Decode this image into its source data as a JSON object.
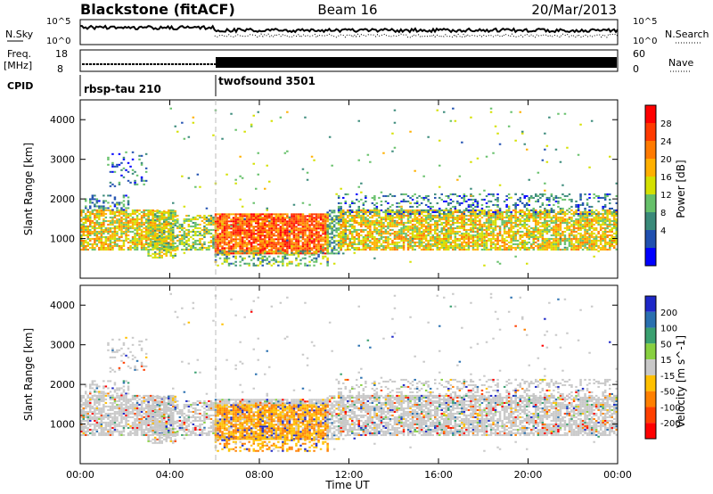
{
  "header": {
    "station": "Blackstone (fitACF)",
    "beam": "Beam 16",
    "date": "20/Mar/2013"
  },
  "top_panels": {
    "nsky_label": "N.Sky",
    "nsky_ticks": [
      "10^5",
      "10^0"
    ],
    "nsearch_label": "N.Search",
    "nsearch_ticks": [
      "10^5",
      "10^0"
    ],
    "freq_label": "Freq.",
    "freq_unit": "[MHz]",
    "freq_ticks": [
      "18",
      "8"
    ],
    "nave_label": "Nave",
    "nave_ticks": [
      "60",
      "0"
    ],
    "cpid_label": "CPID",
    "cpid_programs": [
      {
        "name": "rbsp-tau 210",
        "start_hour": 0
      },
      {
        "name": "twofsound 3501",
        "start_hour": 6
      }
    ]
  },
  "chart_data": [
    {
      "type": "heatmap",
      "name": "power-panel",
      "ylabel": "Slant Range [km]",
      "xlim": [
        0,
        24
      ],
      "ylim": [
        0,
        4500
      ],
      "yticks": [
        "4000",
        "3000",
        "2000",
        "1000"
      ],
      "ytick_values": [
        4000,
        3000,
        2000,
        1000
      ],
      "colorbar": {
        "label": "Power [dB]",
        "ticks": [
          "28",
          "24",
          "20",
          "16",
          "12",
          "8",
          "4"
        ],
        "colors": [
          "#ff0000",
          "#ff3a00",
          "#ff7a00",
          "#ffb000",
          "#d4e000",
          "#66c06a",
          "#3a8a7a",
          "#2050b0",
          "#0000ff"
        ]
      }
    },
    {
      "type": "heatmap",
      "name": "velocity-panel",
      "ylabel": "Slant Range [km]",
      "xlabel": "Time UT",
      "xlim": [
        0,
        24
      ],
      "ylim": [
        0,
        4500
      ],
      "yticks": [
        "4000",
        "3000",
        "2000",
        "1000"
      ],
      "ytick_values": [
        4000,
        3000,
        2000,
        1000
      ],
      "xticks": [
        "00:00",
        "04:00",
        "08:00",
        "12:00",
        "16:00",
        "20:00",
        "00:00"
      ],
      "xtick_values": [
        0,
        4,
        8,
        12,
        16,
        20,
        24
      ],
      "colorbar": {
        "label": "Velocity [m s^-1]",
        "ticks": [
          "200",
          "100",
          "50",
          "15",
          "-15",
          "-50",
          "-100",
          "-200"
        ],
        "colors": [
          "#1e28c8",
          "#2a70b0",
          "#3aa070",
          "#88d040",
          "#c8c8c8",
          "#ffc000",
          "#ff8000",
          "#ff4000",
          "#ff0000"
        ]
      }
    }
  ]
}
